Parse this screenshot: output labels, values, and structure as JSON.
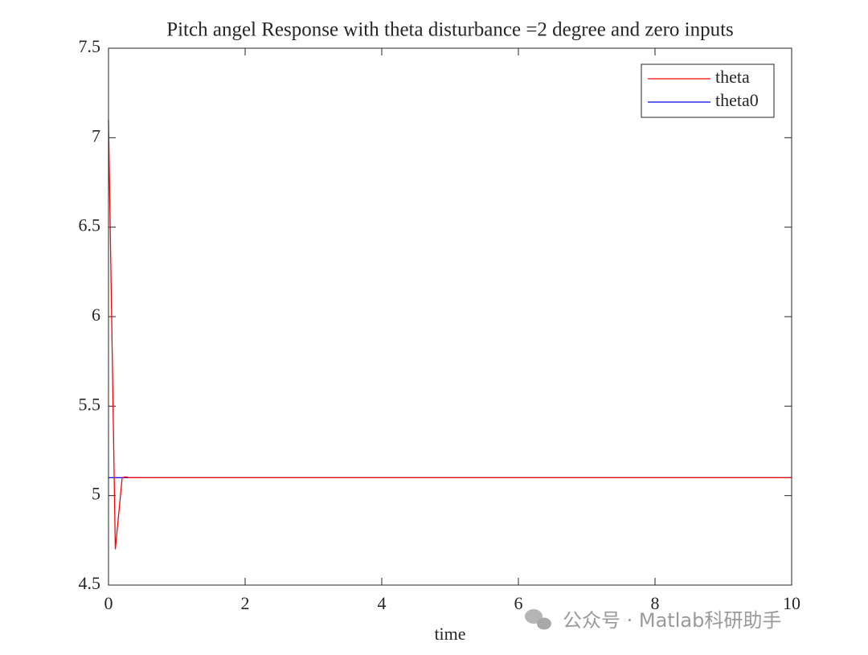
{
  "chart_data": {
    "type": "line",
    "title": "Pitch angel Response with theta disturbance =2 degree and zero inputs",
    "x_label": "time",
    "series": [
      {
        "name": "theta",
        "color": "#ff0000",
        "x": [
          0,
          0.1,
          0.2,
          0.25,
          0.3,
          0.5,
          1,
          10
        ],
        "values": [
          7.1,
          4.7,
          5.1,
          5.105,
          5.1,
          5.1,
          5.1,
          5.1
        ]
      },
      {
        "name": "theta0",
        "color": "#0000ff",
        "x": [
          0,
          10
        ],
        "values": [
          5.1,
          5.1
        ]
      }
    ],
    "xlim": [
      0,
      10
    ],
    "xticks": [
      0,
      2,
      4,
      6,
      8,
      10
    ],
    "ylim": [
      4.5,
      7.5
    ],
    "yticks": [
      4.5,
      5,
      5.5,
      6,
      6.5,
      7,
      7.5
    ],
    "grid": false,
    "legend": "top-right",
    "watermark": "公众号 · Matlab科研助手"
  }
}
